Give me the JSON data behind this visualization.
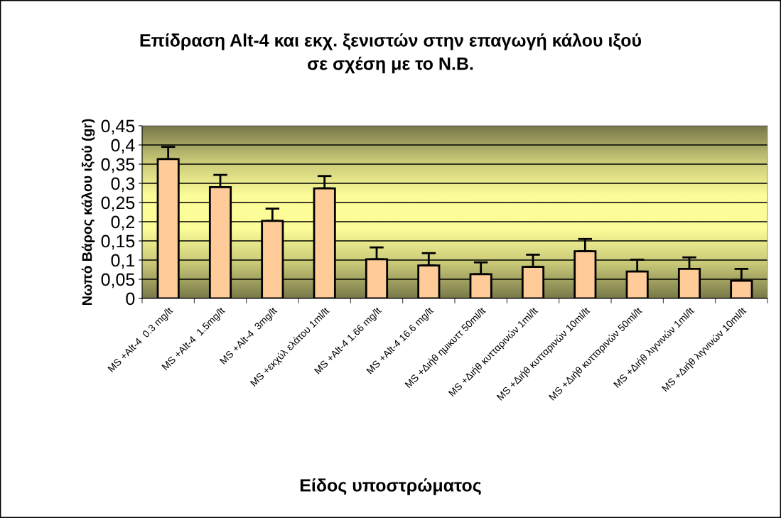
{
  "chart_data": {
    "type": "bar",
    "title": "Επίδραση Alt-4 και εκχ. ξενιστών στην επαγωγή κάλου ιξού\nσε σχέση με το Ν.Β.",
    "xlabel": "Είδος υποστρώματος",
    "ylabel": "Νωπό Βάρος κάλου ιξού (gr)",
    "categories": [
      "MS +Alt-4  0.3 mg/lt",
      "MS +Alt-4  1.5mg/lt",
      "MS +Alt-4  3mg/lt",
      "MS +εκχύλ ελάτου 1ml/lt",
      "MS +Alt-4 1.66 mg/lt",
      "MS +Alt-4 16.6 mg/lt",
      "MS +Διήθ ημικυττ 50ml/lt",
      "MS +Διήθ κυτταρινών 1ml/lt",
      "MS +Διήθ κυτταρινών 10ml/lt",
      "MS +Διήθ κυτταρινών 50ml/lt",
      "MS +Διήθ λιγνινών 1ml/lt",
      "MS +Διήθ λιγνινών 10ml/lt"
    ],
    "values": [
      0.363,
      0.29,
      0.202,
      0.287,
      0.102,
      0.086,
      0.063,
      0.082,
      0.123,
      0.07,
      0.077,
      0.046
    ],
    "errors": [
      [
        0.363,
        0.395
      ],
      [
        0.29,
        0.322
      ],
      [
        0.202,
        0.234
      ],
      [
        0.287,
        0.319
      ],
      [
        0.102,
        0.133
      ],
      [
        0.086,
        0.118
      ],
      [
        0.063,
        0.094
      ],
      [
        0.082,
        0.114
      ],
      [
        0.123,
        0.155
      ],
      [
        0.07,
        0.101
      ],
      [
        0.077,
        0.107
      ],
      [
        0.046,
        0.077
      ]
    ],
    "color": "#ffcc99",
    "ylim": [
      0,
      0.45
    ],
    "yticks": [
      0,
      {
        "value": 0.05,
        "label": "0,05"
      },
      {
        "value": 0.1,
        "label": "0,1"
      },
      {
        "value": 0.15,
        "label": "0,15"
      },
      {
        "value": 0.2,
        "label": "0,2"
      },
      {
        "value": 0.25,
        "label": "0,25"
      },
      {
        "value": 0.3,
        "label": "0,3"
      },
      {
        "value": 0.35,
        "label": "0,35"
      },
      {
        "value": 0.4,
        "label": "0,4"
      },
      {
        "value": 0.45,
        "label": "0,45"
      }
    ],
    "grid": "y",
    "legend": false
  }
}
